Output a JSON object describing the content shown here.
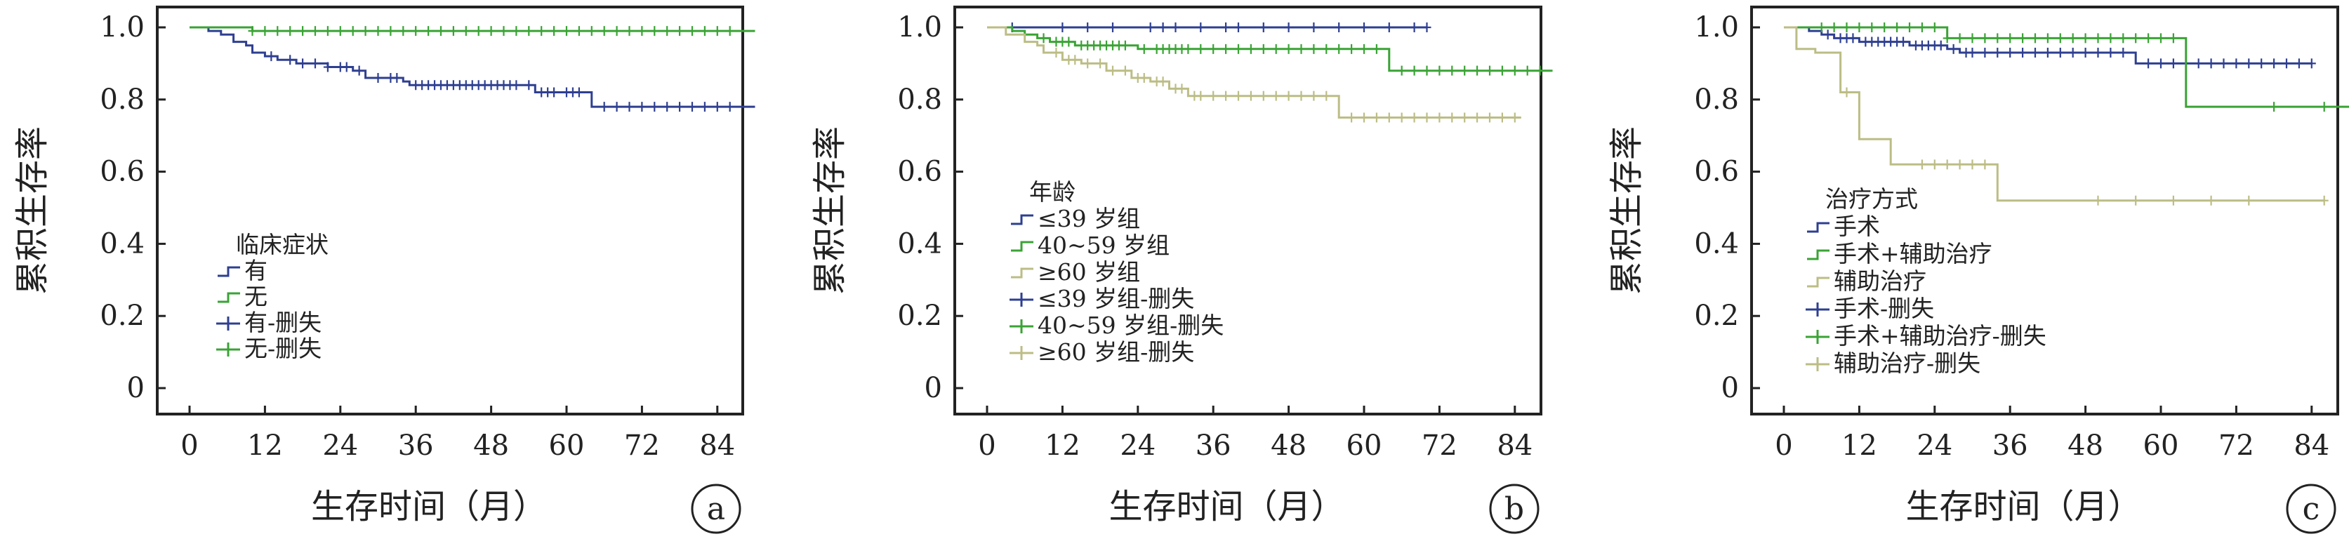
{
  "colors": {
    "blue": "#2e3f91",
    "green": "#3aa335",
    "tan": "#bcbd85",
    "axis": "#222222"
  },
  "chart_data": [
    {
      "panel": "a",
      "type": "line",
      "subtype": "kaplan-meier",
      "ylabel": "累积生存率",
      "xlabel": "生存时间（月）",
      "xlim": [
        0,
        90
      ],
      "ylim": [
        0,
        1.05
      ],
      "x_ticks": [
        "0",
        "12",
        "24",
        "36",
        "48",
        "60",
        "72",
        "84"
      ],
      "y_ticks": [
        "0",
        "0.2",
        "0.4",
        "0.6",
        "0.8",
        "1.0"
      ],
      "legend_title": "临床症状",
      "legend": [
        {
          "label": "有",
          "marker": "step",
          "color": "blue"
        },
        {
          "label": "无",
          "marker": "step",
          "color": "green"
        },
        {
          "label": "有-删失",
          "marker": "plus",
          "color": "blue"
        },
        {
          "label": "无-删失",
          "marker": "plus",
          "color": "green"
        }
      ],
      "series": [
        {
          "name": "有",
          "color": "blue",
          "steps": [
            [
              0,
              1.0
            ],
            [
              3,
              0.99
            ],
            [
              5,
              0.98
            ],
            [
              7,
              0.96
            ],
            [
              9,
              0.95
            ],
            [
              10,
              0.93
            ],
            [
              12,
              0.92
            ],
            [
              14,
              0.91
            ],
            [
              17,
              0.9
            ],
            [
              22,
              0.89
            ],
            [
              26,
              0.88
            ],
            [
              28,
              0.86
            ],
            [
              34,
              0.85
            ],
            [
              35,
              0.84
            ],
            [
              55,
              0.82
            ],
            [
              64,
              0.78
            ],
            [
              90,
              0.78
            ]
          ],
          "censored": [
            13,
            16,
            18,
            20,
            22,
            24,
            25,
            27,
            30,
            32,
            33,
            36,
            37,
            38,
            39,
            40,
            41,
            42,
            43,
            44,
            45,
            46,
            47,
            48,
            49,
            50,
            51,
            52,
            54,
            56,
            57,
            58,
            60,
            61,
            62,
            66,
            68,
            70,
            72,
            74,
            76,
            78,
            80,
            82,
            84,
            86
          ]
        },
        {
          "name": "无",
          "color": "green",
          "steps": [
            [
              0,
              1.0
            ],
            [
              10,
              0.99
            ],
            [
              90,
              0.99
            ]
          ],
          "censored": [
            10,
            12,
            14,
            16,
            18,
            20,
            22,
            24,
            26,
            28,
            30,
            32,
            34,
            36,
            38,
            40,
            42,
            44,
            46,
            48,
            50,
            52,
            54,
            56,
            58,
            60,
            62,
            64,
            66,
            68,
            70,
            72,
            74,
            76,
            78,
            80,
            82,
            84,
            86
          ]
        }
      ]
    },
    {
      "panel": "b",
      "type": "line",
      "subtype": "kaplan-meier",
      "ylabel": "累积生存率",
      "xlabel": "生存时间（月）",
      "xlim": [
        0,
        90
      ],
      "ylim": [
        0,
        1.05
      ],
      "x_ticks": [
        "0",
        "12",
        "24",
        "36",
        "48",
        "60",
        "72",
        "84"
      ],
      "y_ticks": [
        "0",
        "0.2",
        "0.4",
        "0.6",
        "0.8",
        "1.0"
      ],
      "legend_title": "年龄",
      "legend": [
        {
          "label": "≤39 岁组",
          "marker": "step",
          "color": "blue"
        },
        {
          "label": "40~59 岁组",
          "marker": "step",
          "color": "green"
        },
        {
          "label": "≥60 岁组",
          "marker": "step",
          "color": "tan"
        },
        {
          "label": "≤39 岁组-删失",
          "marker": "plus",
          "color": "blue"
        },
        {
          "label": "40~59 岁组-删失",
          "marker": "plus",
          "color": "green"
        },
        {
          "label": "≥60 岁组-删失",
          "marker": "plus",
          "color": "tan"
        }
      ],
      "series": [
        {
          "name": "≤39 岁组",
          "color": "blue",
          "steps": [
            [
              0,
              1.0
            ],
            [
              70,
              1.0
            ]
          ],
          "censored": [
            4,
            12,
            16,
            20,
            26,
            28,
            30,
            34,
            38,
            40,
            44,
            48,
            52,
            56,
            60,
            64,
            68,
            70
          ]
        },
        {
          "name": "40~59 岁组",
          "color": "green",
          "steps": [
            [
              0,
              1.0
            ],
            [
              4,
              0.99
            ],
            [
              6,
              0.98
            ],
            [
              8,
              0.97
            ],
            [
              10,
              0.96
            ],
            [
              14,
              0.95
            ],
            [
              24,
              0.94
            ],
            [
              64,
              0.88
            ],
            [
              90,
              0.88
            ]
          ],
          "censored": [
            9,
            11,
            12,
            13,
            15,
            16,
            17,
            18,
            19,
            20,
            21,
            22,
            25,
            27,
            28,
            29,
            30,
            31,
            32,
            34,
            36,
            38,
            40,
            42,
            44,
            46,
            48,
            50,
            52,
            54,
            56,
            58,
            60,
            62,
            66,
            68,
            70,
            72,
            74,
            76,
            78,
            80,
            82,
            84,
            86,
            88
          ]
        },
        {
          "name": "≥60 岁组",
          "color": "tan",
          "steps": [
            [
              0,
              1.0
            ],
            [
              3,
              0.98
            ],
            [
              6,
              0.96
            ],
            [
              8,
              0.95
            ],
            [
              9,
              0.93
            ],
            [
              12,
              0.91
            ],
            [
              15,
              0.9
            ],
            [
              19,
              0.88
            ],
            [
              23,
              0.86
            ],
            [
              26,
              0.85
            ],
            [
              29,
              0.83
            ],
            [
              32,
              0.81
            ],
            [
              56,
              0.75
            ],
            [
              85,
              0.75
            ]
          ],
          "censored": [
            11,
            13,
            14,
            16,
            18,
            20,
            22,
            24,
            25,
            27,
            28,
            30,
            31,
            33,
            34,
            36,
            38,
            40,
            42,
            44,
            46,
            48,
            50,
            52,
            54,
            58,
            60,
            62,
            64,
            66,
            68,
            70,
            72,
            74,
            76,
            78,
            80,
            82,
            84
          ]
        }
      ]
    },
    {
      "panel": "c",
      "type": "line",
      "subtype": "kaplan-meier",
      "ylabel": "累积生存率",
      "xlabel": "生存时间（月）",
      "xlim": [
        0,
        90
      ],
      "ylim": [
        0,
        1.05
      ],
      "x_ticks": [
        "0",
        "12",
        "24",
        "36",
        "48",
        "60",
        "72",
        "84"
      ],
      "y_ticks": [
        "0",
        "0.2",
        "0.4",
        "0.6",
        "0.8",
        "1.0"
      ],
      "legend_title": "治疗方式",
      "legend": [
        {
          "label": "手术",
          "marker": "step",
          "color": "blue"
        },
        {
          "label": "手术+辅助治疗",
          "marker": "step",
          "color": "green"
        },
        {
          "label": "辅助治疗",
          "marker": "step",
          "color": "tan"
        },
        {
          "label": "手术-删失",
          "marker": "plus",
          "color": "blue"
        },
        {
          "label": "手术+辅助治疗-删失",
          "marker": "plus",
          "color": "green"
        },
        {
          "label": "辅助治疗-删失",
          "marker": "plus",
          "color": "tan"
        }
      ],
      "series": [
        {
          "name": "手术",
          "color": "blue",
          "steps": [
            [
              0,
              1.0
            ],
            [
              4,
              0.99
            ],
            [
              6,
              0.98
            ],
            [
              8,
              0.97
            ],
            [
              12,
              0.96
            ],
            [
              20,
              0.95
            ],
            [
              26,
              0.94
            ],
            [
              28,
              0.93
            ],
            [
              56,
              0.9
            ],
            [
              84,
              0.9
            ]
          ],
          "censored": [
            7,
            9,
            10,
            11,
            13,
            14,
            15,
            16,
            17,
            18,
            19,
            21,
            22,
            23,
            24,
            25,
            27,
            29,
            30,
            32,
            34,
            36,
            38,
            40,
            42,
            44,
            46,
            48,
            50,
            52,
            54,
            58,
            60,
            62,
            64,
            66,
            68,
            70,
            72,
            74,
            76,
            78,
            80,
            82,
            84
          ]
        },
        {
          "name": "手术+辅助治疗",
          "color": "green",
          "steps": [
            [
              0,
              1.0
            ],
            [
              26,
              0.97
            ],
            [
              64,
              0.78
            ],
            [
              90,
              0.78
            ]
          ],
          "censored": [
            6,
            8,
            10,
            12,
            14,
            16,
            18,
            20,
            22,
            24,
            26,
            28,
            30,
            32,
            34,
            36,
            38,
            40,
            42,
            44,
            46,
            48,
            50,
            52,
            54,
            56,
            58,
            60,
            62,
            78,
            86
          ]
        },
        {
          "name": "辅助治疗",
          "color": "tan",
          "steps": [
            [
              0,
              1.0
            ],
            [
              2,
              0.94
            ],
            [
              5,
              0.93
            ],
            [
              9,
              0.82
            ],
            [
              12,
              0.69
            ],
            [
              17,
              0.62
            ],
            [
              34,
              0.52
            ],
            [
              86,
              0.52
            ]
          ],
          "censored": [
            10,
            22,
            24,
            26,
            28,
            30,
            32,
            50,
            56,
            62,
            68,
            74,
            86
          ]
        }
      ]
    }
  ]
}
